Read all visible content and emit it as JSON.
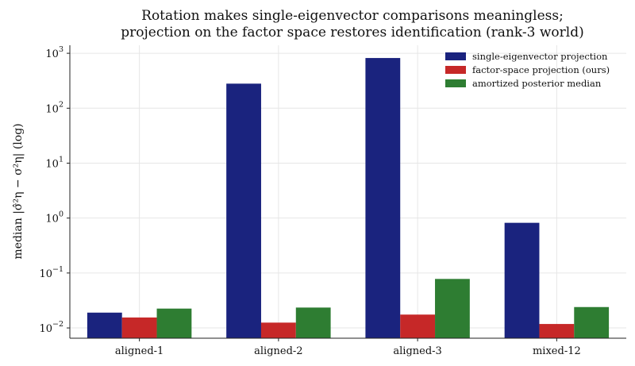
{
  "chart_data": {
    "type": "bar",
    "title": [
      "Rotation makes single-eigenvector comparisons meaningless;",
      "projection on the factor space restores identification (rank-3 world)"
    ],
    "ylabel": "median |σ̂²η − σ²η| (log)",
    "yscale": "log",
    "ylim": [
      0.0065,
      1400
    ],
    "yticks": [
      {
        "value": 0.01,
        "base": "10",
        "exp": "−2"
      },
      {
        "value": 0.1,
        "base": "10",
        "exp": "−1"
      },
      {
        "value": 1,
        "base": "10",
        "exp": "0"
      },
      {
        "value": 10,
        "base": "10",
        "exp": "1"
      },
      {
        "value": 100,
        "base": "10",
        "exp": "2"
      },
      {
        "value": 1000,
        "base": "10",
        "exp": "3"
      }
    ],
    "categories": [
      "aligned-1",
      "aligned-2",
      "aligned-3",
      "mixed-12"
    ],
    "series": [
      {
        "name": "single-eigenvector projection",
        "color": "#1a237e",
        "values": [
          0.019,
          280,
          820,
          0.82
        ]
      },
      {
        "name": "factor-space projection (ours)",
        "color": "#c62828",
        "values": [
          0.0155,
          0.0125,
          0.0175,
          0.0118
        ]
      },
      {
        "name": "amortized posterior median",
        "color": "#2e7d32",
        "values": [
          0.0225,
          0.0235,
          0.078,
          0.024
        ]
      }
    ],
    "grid": true,
    "legend_position": "top-right"
  }
}
